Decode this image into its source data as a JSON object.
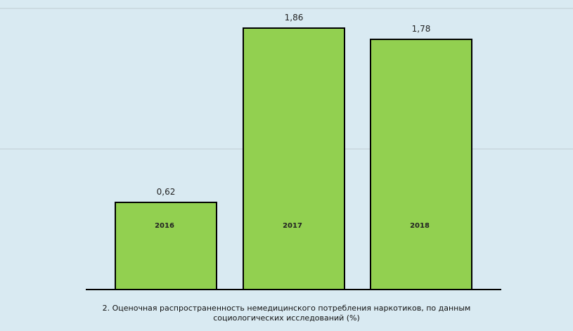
{
  "chart_data": {
    "type": "bar",
    "categories": [
      "2016",
      "2017",
      "2018"
    ],
    "values": [
      0.62,
      1.86,
      1.78
    ],
    "value_labels": [
      "0,62",
      "1,86",
      "1,78"
    ],
    "ylim": [
      0,
      2
    ],
    "grid": true,
    "colors": {
      "bar": "#92d050",
      "background": "#d9eaf2",
      "gridline": "#c8d6dd"
    },
    "caption_line1": "2. Оценочная распространенность  немедицинского  потребления  наркотиков, по данным",
    "caption_line2": "социологических  исследований  (%)"
  }
}
